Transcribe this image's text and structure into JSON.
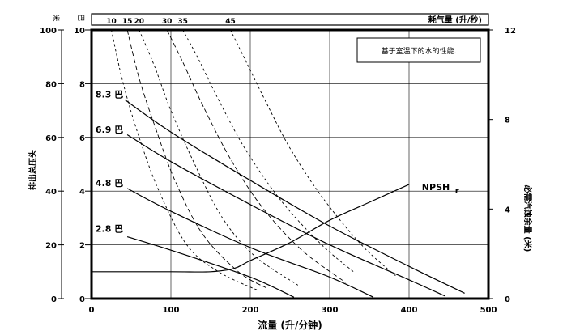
{
  "chart_data": {
    "type": "line",
    "note": "基于室温下的水的性能.",
    "xlabel": "流量 (升/分钟)",
    "ylabel_left": "排出总压头",
    "ylabel_right": "必需汽蚀余量 (米)",
    "top_label": "耗气量 (升/秒)",
    "unit_meter": "米",
    "unit_bar": "巴",
    "xlim": [
      0,
      500
    ],
    "ylim_bar": [
      0,
      10
    ],
    "ylim_m": [
      0,
      100
    ],
    "npsh_ylim": [
      0,
      12
    ],
    "x_ticks": [
      0,
      100,
      200,
      300,
      400,
      500
    ],
    "y_ticks_m": [
      0,
      20,
      40,
      60,
      80,
      100
    ],
    "y_ticks_bar": [
      0,
      2,
      4,
      6,
      8,
      10
    ],
    "y_ticks_npsh": [
      0,
      4,
      8,
      12
    ],
    "grid": true,
    "pressure_series": [
      {
        "name": "8.3 巴",
        "label_at": [
          5,
          7.6
        ],
        "points": [
          [
            42,
            7.4
          ],
          [
            100,
            6.2
          ],
          [
            200,
            4.4
          ],
          [
            300,
            2.7
          ],
          [
            400,
            1.2
          ],
          [
            470,
            0.2
          ]
        ]
      },
      {
        "name": "6.9 巴",
        "label_at": [
          5,
          6.3
        ],
        "points": [
          [
            45,
            6.1
          ],
          [
            100,
            5.1
          ],
          [
            200,
            3.5
          ],
          [
            300,
            2.0
          ],
          [
            400,
            0.7
          ],
          [
            445,
            0.1
          ]
        ]
      },
      {
        "name": "4.8 巴",
        "label_at": [
          5,
          4.3
        ],
        "points": [
          [
            45,
            4.1
          ],
          [
            100,
            3.25
          ],
          [
            200,
            1.9
          ],
          [
            300,
            0.8
          ],
          [
            355,
            0.05
          ]
        ]
      },
      {
        "name": "2.8 巴",
        "label_at": [
          5,
          2.6
        ],
        "points": [
          [
            45,
            2.3
          ],
          [
            100,
            1.8
          ],
          [
            200,
            0.8
          ],
          [
            255,
            0.05
          ]
        ]
      }
    ],
    "air_series": [
      {
        "name": "10",
        "dash": "3,3",
        "points": [
          [
            25,
            10
          ],
          [
            40,
            8.0
          ],
          [
            60,
            6.0
          ],
          [
            85,
            4.0
          ],
          [
            120,
            2.0
          ],
          [
            160,
            1.0
          ],
          [
            210,
            0.3
          ]
        ]
      },
      {
        "name": "15",
        "dash": "6,3",
        "points": [
          [
            45,
            10
          ],
          [
            60,
            8.2
          ],
          [
            80,
            6.4
          ],
          [
            105,
            4.4
          ],
          [
            140,
            2.4
          ],
          [
            185,
            1.0
          ],
          [
            220,
            0.4
          ]
        ]
      },
      {
        "name": "20",
        "dash": "3,3",
        "points": [
          [
            60,
            10
          ],
          [
            80,
            8.6
          ],
          [
            100,
            7.0
          ],
          [
            130,
            5.0
          ],
          [
            165,
            3.0
          ],
          [
            205,
            1.6
          ],
          [
            260,
            0.5
          ]
        ]
      },
      {
        "name": "30",
        "dash": "6,3",
        "points": [
          [
            95,
            10
          ],
          [
            115,
            8.8
          ],
          [
            140,
            7.2
          ],
          [
            175,
            5.2
          ],
          [
            215,
            3.4
          ],
          [
            265,
            1.8
          ],
          [
            320,
            0.6
          ]
        ]
      },
      {
        "name": "35",
        "dash": "3,3",
        "points": [
          [
            115,
            10
          ],
          [
            135,
            8.9
          ],
          [
            160,
            7.4
          ],
          [
            195,
            5.5
          ],
          [
            240,
            3.6
          ],
          [
            290,
            2.0
          ],
          [
            330,
            1.0
          ]
        ]
      },
      {
        "name": "45",
        "dash": "3,3",
        "points": [
          [
            175,
            10
          ],
          [
            195,
            8.8
          ],
          [
            220,
            7.3
          ],
          [
            250,
            5.6
          ],
          [
            290,
            3.8
          ],
          [
            340,
            2.0
          ],
          [
            385,
            0.8
          ]
        ]
      }
    ],
    "npsh": {
      "name": "NPSHr",
      "label": "NPSH",
      "label_sub": "r",
      "label_at": [
        410,
        3.5
      ],
      "points": [
        [
          0,
          1.2
        ],
        [
          100,
          1.2
        ],
        [
          150,
          1.2
        ],
        [
          180,
          1.35
        ],
        [
          200,
          1.7
        ],
        [
          250,
          2.5
        ],
        [
          300,
          3.5
        ],
        [
          350,
          4.3
        ],
        [
          400,
          5.1
        ]
      ]
    },
    "air_x_scale": [
      8,
      50
    ]
  }
}
